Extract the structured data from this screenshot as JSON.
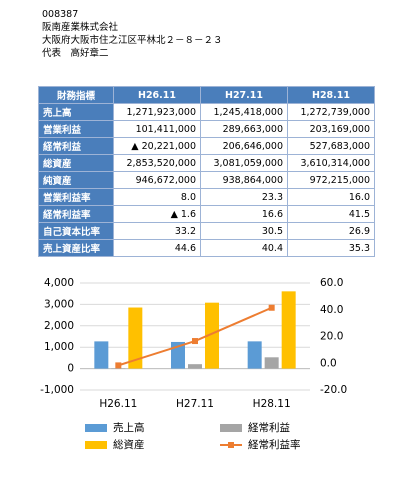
{
  "header": {
    "code": "008387",
    "company": "阪南産業株式会社",
    "address": "大阪府大阪市住之江区平林北２－８－２３",
    "representative": "代表　高好章二"
  },
  "table": {
    "header": [
      "財務指標",
      "H26.11",
      "H27.11",
      "H28.11"
    ],
    "rows": [
      [
        "売上高",
        "1,271,923,000",
        "1,245,418,000",
        "1,272,739,000"
      ],
      [
        "営業利益",
        "101,411,000",
        "289,663,000",
        "203,169,000"
      ],
      [
        "経常利益",
        "▲ 20,221,000",
        "206,646,000",
        "527,683,000"
      ],
      [
        "総資産",
        "2,853,520,000",
        "3,081,059,000",
        "3,610,314,000"
      ],
      [
        "純資産",
        "946,672,000",
        "938,864,000",
        "972,215,000"
      ],
      [
        "営業利益率",
        "8.0",
        "23.3",
        "16.0"
      ],
      [
        "経常利益率",
        "▲ 1.6",
        "16.6",
        "41.5"
      ],
      [
        "自己資本比率",
        "33.2",
        "30.5",
        "26.9"
      ],
      [
        "売上資産比率",
        "44.6",
        "40.4",
        "35.3"
      ]
    ]
  },
  "chart_data": {
    "type": "bar",
    "categories": [
      "H26.11",
      "H27.11",
      "H28.11"
    ],
    "series": [
      {
        "name": "売上高",
        "color": "#5b9bd5",
        "values": [
          1272,
          1245,
          1273
        ]
      },
      {
        "name": "経常利益",
        "color": "#a5a5a5",
        "values": [
          -20,
          207,
          528
        ]
      },
      {
        "name": "総資産",
        "color": "#ffc000",
        "values": [
          2854,
          3081,
          3610
        ]
      },
      {
        "name": "経常利益率",
        "type": "line",
        "axis": "y2",
        "color": "#ed7d31",
        "values": [
          -1.6,
          16.6,
          41.5
        ]
      }
    ],
    "ylim": [
      -1000,
      4000
    ],
    "yticks": [
      {
        "value": -1000,
        "label": "-1,000"
      },
      0,
      {
        "value": 1000,
        "label": "1,000"
      },
      {
        "value": 2000,
        "label": "2,000"
      },
      {
        "value": 3000,
        "label": "3,000"
      },
      {
        "value": 4000,
        "label": "4,000"
      }
    ],
    "y2lim": [
      -20,
      60
    ],
    "y2ticks": [
      {
        "value": -20,
        "label": "-20.0"
      },
      {
        "value": 0,
        "label": "0.0"
      },
      {
        "value": 20,
        "label": "20.0"
      },
      {
        "value": 40,
        "label": "40.0"
      },
      {
        "value": 60,
        "label": "60.0"
      }
    ],
    "grid": true
  }
}
